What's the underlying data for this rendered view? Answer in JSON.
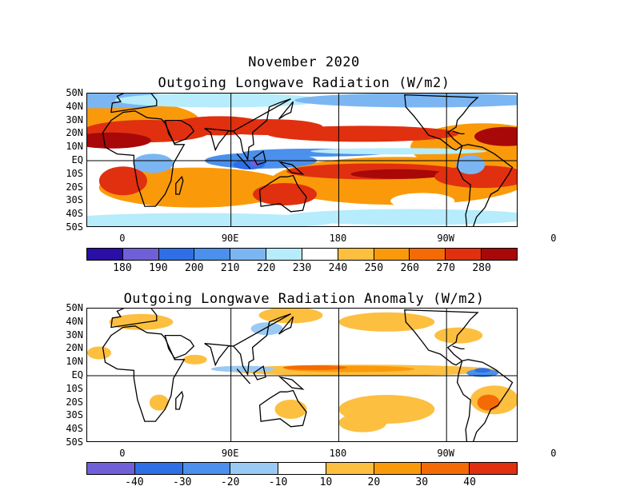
{
  "chart_data": [
    {
      "type": "heatmap",
      "supertitle": "November 2020",
      "title": "Outgoing Longwave Radiation (W/m2)",
      "lat_ticks": [
        "50N",
        "40N",
        "30N",
        "20N",
        "10N",
        "EQ",
        "10S",
        "20S",
        "30S",
        "40S",
        "50S"
      ],
      "lon_ticks": [
        "0",
        "90E",
        "180",
        "90W",
        "0"
      ],
      "colorbar_ticks": [
        "180",
        "190",
        "200",
        "210",
        "220",
        "230",
        "240",
        "250",
        "260",
        "270",
        "280"
      ],
      "colorbar_colors": [
        "#2a0ea6",
        "#7060d8",
        "#2e6fe6",
        "#4a90ec",
        "#7bb6f2",
        "#b6ecfb",
        "#ffffff",
        "#fdbf40",
        "#fa9a0a",
        "#f46b06",
        "#e03010",
        "#a80808"
      ]
    },
    {
      "type": "heatmap",
      "title": "Outgoing Longwave Radiation Anomaly (W/m2)",
      "lat_ticks": [
        "50N",
        "40N",
        "30N",
        "20N",
        "10N",
        "EQ",
        "10S",
        "20S",
        "30S",
        "40S",
        "50S"
      ],
      "lon_ticks": [
        "0",
        "90E",
        "180",
        "90W",
        "0"
      ],
      "colorbar_ticks": [
        "-40",
        "-30",
        "-20",
        "-10",
        "10",
        "20",
        "30",
        "40"
      ],
      "colorbar_colors": [
        "#7060d8",
        "#2e6fe6",
        "#4a90ec",
        "#9acaf3",
        "#ffffff",
        "#fdbf40",
        "#fa9a0a",
        "#f46b06",
        "#e03010"
      ]
    }
  ]
}
